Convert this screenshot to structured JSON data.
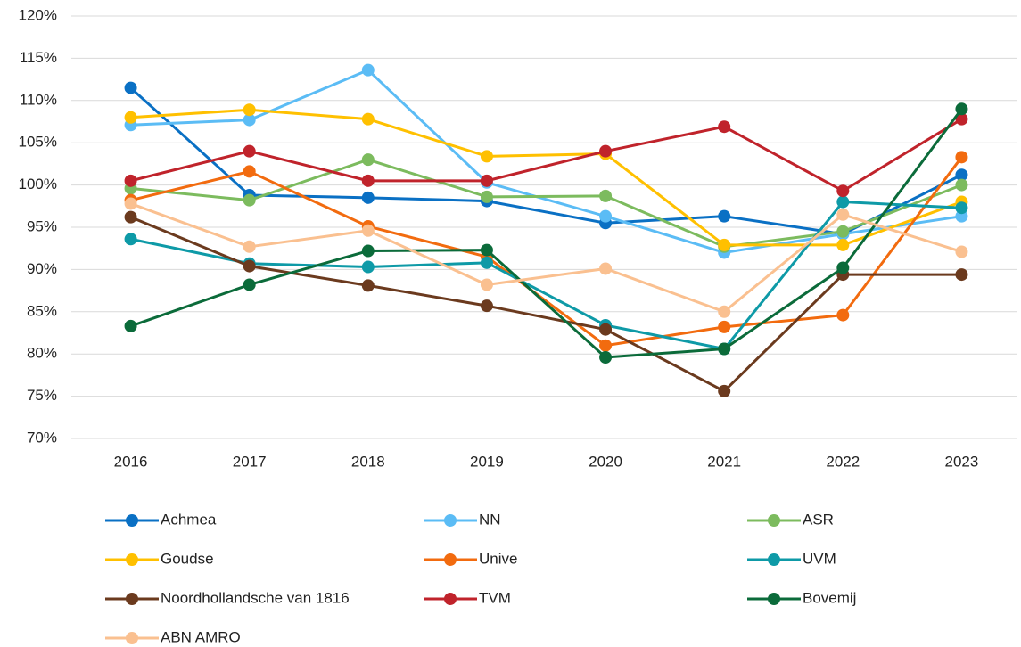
{
  "chart_data": {
    "type": "line",
    "categories": [
      "2016",
      "2017",
      "2018",
      "2019",
      "2020",
      "2021",
      "2022",
      "2023"
    ],
    "ylim": [
      70,
      120
    ],
    "yticks": [
      {
        "value": 70,
        "label": "70%"
      },
      {
        "value": 75,
        "label": "75%"
      },
      {
        "value": 80,
        "label": "80%"
      },
      {
        "value": 85,
        "label": "85%"
      },
      {
        "value": 90,
        "label": "90%"
      },
      {
        "value": 95,
        "label": "95%"
      },
      {
        "value": 100,
        "label": "100%"
      },
      {
        "value": 105,
        "label": "105%"
      },
      {
        "value": 110,
        "label": "110%"
      },
      {
        "value": 115,
        "label": "115%"
      },
      {
        "value": 120,
        "label": "120%"
      }
    ],
    "grid": true,
    "legend": "bottom",
    "series": [
      {
        "name": "Achmea",
        "color": "#0a70c4",
        "values": [
          111.5,
          98.8,
          98.5,
          98.1,
          95.5,
          96.3,
          94.2,
          101.2
        ]
      },
      {
        "name": "NN",
        "color": "#5bbcf5",
        "values": [
          107.1,
          107.7,
          113.6,
          100.3,
          96.3,
          92.0,
          94.2,
          96.3
        ]
      },
      {
        "name": "ASR",
        "color": "#7cbb5e",
        "values": [
          99.6,
          98.2,
          103.0,
          98.6,
          98.7,
          92.7,
          94.5,
          100.0
        ]
      },
      {
        "name": "Goudse",
        "color": "#ffc000",
        "values": [
          108.0,
          108.9,
          107.8,
          103.4,
          103.7,
          92.9,
          92.9,
          98.0
        ]
      },
      {
        "name": "Unive",
        "color": "#f26b0f",
        "values": [
          98.2,
          101.6,
          95.1,
          91.5,
          81.0,
          83.2,
          84.6,
          103.3
        ]
      },
      {
        "name": "UVM",
        "color": "#0e9aa7",
        "values": [
          93.6,
          90.7,
          90.3,
          90.8,
          83.4,
          80.6,
          98.0,
          97.3
        ]
      },
      {
        "name": "Noordhollandsche van 1816",
        "color": "#6b3a1e",
        "values": [
          96.2,
          90.4,
          88.1,
          85.7,
          82.9,
          75.6,
          89.4,
          89.4
        ]
      },
      {
        "name": "TVM",
        "color": "#c0232b",
        "values": [
          100.5,
          104.0,
          100.5,
          100.5,
          104.0,
          106.9,
          99.3,
          107.8
        ]
      },
      {
        "name": "Bovemij",
        "color": "#0b6b3a",
        "values": [
          83.3,
          88.2,
          92.2,
          92.3,
          79.6,
          80.6,
          90.2,
          109.0
        ]
      },
      {
        "name": "ABN AMRO",
        "color": "#fac090",
        "values": [
          97.8,
          92.7,
          94.6,
          88.2,
          90.1,
          85.0,
          96.5,
          92.1
        ]
      }
    ]
  }
}
